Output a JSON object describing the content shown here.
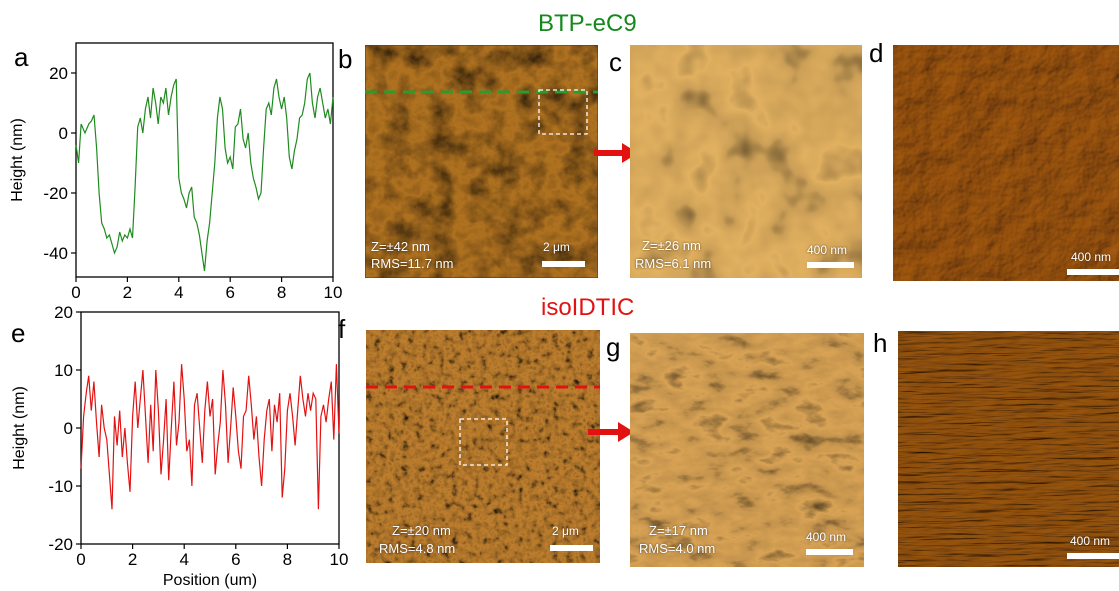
{
  "figure": {
    "titles": {
      "top": "BTP-eC9",
      "bottom": "isoIDTIC"
    },
    "colors": {
      "top": "#15891c",
      "bottom": "#e31212",
      "arrow": "#e31212"
    },
    "letters": {
      "a": "a",
      "b": "b",
      "c": "c",
      "d": "d",
      "e": "e",
      "f": "f",
      "g": "g",
      "h": "h"
    },
    "afm": {
      "b": {
        "z": "Z=±42 nm",
        "rms": "RMS=11.7 nm",
        "scale": "2 μm"
      },
      "c": {
        "z": "Z=±26 nm",
        "rms": "RMS=6.1 nm",
        "scale": "400 nm"
      },
      "d": {
        "scale": "400 nm"
      },
      "f": {
        "z": "Z=±20 nm",
        "rms": "RMS=4.8 nm",
        "scale": "2 μm"
      },
      "g": {
        "z": "Z=±17 nm",
        "rms": "RMS=4.0 nm",
        "scale": "400 nm"
      },
      "h": {
        "scale": "400 nm"
      }
    }
  },
  "chart_data": [
    {
      "type": "line",
      "panel": "a",
      "xlabel": "",
      "ylabel": "Height (nm)",
      "xlim": [
        0,
        10
      ],
      "ylim": [
        -48,
        30
      ],
      "xticks": [
        0,
        2,
        4,
        6,
        8,
        10
      ],
      "yticks": [
        20,
        0,
        -20,
        -40
      ],
      "color": "#1f8b1f",
      "x": [
        0,
        0.1,
        0.2,
        0.35,
        0.5,
        0.6,
        0.7,
        0.8,
        0.9,
        1.0,
        1.1,
        1.2,
        1.3,
        1.4,
        1.5,
        1.6,
        1.7,
        1.8,
        1.9,
        2.0,
        2.1,
        2.2,
        2.3,
        2.4,
        2.5,
        2.6,
        2.7,
        2.8,
        2.9,
        3.0,
        3.1,
        3.2,
        3.3,
        3.4,
        3.5,
        3.6,
        3.7,
        3.8,
        3.9,
        4.0,
        4.1,
        4.2,
        4.3,
        4.4,
        4.5,
        4.6,
        4.7,
        4.8,
        4.9,
        5.0,
        5.1,
        5.2,
        5.3,
        5.4,
        5.5,
        5.6,
        5.7,
        5.8,
        5.9,
        6.0,
        6.1,
        6.2,
        6.3,
        6.4,
        6.5,
        6.6,
        6.7,
        6.8,
        6.9,
        7.0,
        7.1,
        7.2,
        7.3,
        7.4,
        7.5,
        7.6,
        7.7,
        7.8,
        7.9,
        8.0,
        8.1,
        8.2,
        8.3,
        8.4,
        8.5,
        8.6,
        8.7,
        8.8,
        8.9,
        9.0,
        9.1,
        9.2,
        9.3,
        9.4,
        9.5,
        9.6,
        9.7,
        9.8,
        9.9,
        10.0
      ],
      "y": [
        -4,
        -10,
        3,
        0,
        3,
        4,
        6,
        -5,
        -20,
        -30,
        -32,
        -35,
        -34,
        -37,
        -40,
        -38,
        -33,
        -36,
        -34,
        -35,
        -32,
        -35,
        -18,
        2,
        5,
        0,
        8,
        12,
        5,
        15,
        10,
        3,
        12,
        10,
        15,
        6,
        12,
        16,
        18,
        -15,
        -20,
        -22,
        -25,
        -20,
        -18,
        -28,
        -30,
        -34,
        -40,
        -46,
        -36,
        -30,
        -20,
        -10,
        5,
        12,
        8,
        -5,
        -10,
        -8,
        -12,
        2,
        3,
        8,
        -2,
        -5,
        0,
        -10,
        -15,
        -18,
        -22,
        -20,
        -5,
        8,
        10,
        6,
        15,
        18,
        12,
        8,
        12,
        5,
        -8,
        -12,
        -6,
        -2,
        5,
        6,
        10,
        18,
        20,
        10,
        5,
        12,
        15,
        10,
        5,
        8,
        3,
        12
      ]
    },
    {
      "type": "line",
      "panel": "e",
      "xlabel": "Position (um)",
      "ylabel": "Height (nm)",
      "xlim": [
        0,
        10
      ],
      "ylim": [
        -20,
        20
      ],
      "xticks": [
        0,
        2,
        4,
        6,
        8,
        10
      ],
      "yticks": [
        20,
        10,
        0,
        -10,
        -20
      ],
      "color": "#e31212",
      "x": [
        0,
        0.1,
        0.2,
        0.3,
        0.4,
        0.5,
        0.6,
        0.7,
        0.8,
        0.9,
        1.0,
        1.1,
        1.2,
        1.3,
        1.4,
        1.5,
        1.6,
        1.7,
        1.8,
        1.9,
        2.0,
        2.1,
        2.2,
        2.3,
        2.4,
        2.5,
        2.6,
        2.7,
        2.8,
        2.9,
        3.0,
        3.1,
        3.2,
        3.3,
        3.4,
        3.5,
        3.6,
        3.7,
        3.8,
        3.9,
        4.0,
        4.1,
        4.2,
        4.3,
        4.4,
        4.5,
        4.6,
        4.7,
        4.8,
        4.9,
        5.0,
        5.1,
        5.2,
        5.3,
        5.4,
        5.5,
        5.6,
        5.7,
        5.8,
        5.9,
        6.0,
        6.1,
        6.2,
        6.3,
        6.4,
        6.5,
        6.6,
        6.7,
        6.8,
        6.9,
        7.0,
        7.1,
        7.2,
        7.3,
        7.4,
        7.5,
        7.6,
        7.7,
        7.8,
        7.9,
        8.0,
        8.1,
        8.2,
        8.3,
        8.4,
        8.5,
        8.6,
        8.7,
        8.8,
        8.9,
        9.0,
        9.1,
        9.2,
        9.3,
        9.4,
        9.5,
        9.6,
        9.7,
        9.8,
        9.9,
        10.0
      ],
      "y": [
        -7,
        2,
        6,
        9,
        3,
        8,
        1,
        -5,
        4,
        0,
        -2,
        -8,
        -14,
        2,
        -3,
        3,
        -5,
        0,
        -6,
        -11,
        2,
        8,
        0,
        5,
        10,
        2,
        -6,
        4,
        -4,
        10,
        3,
        -8,
        -2,
        5,
        -9,
        0,
        8,
        -3,
        1,
        11,
        5,
        -4,
        -2,
        -10,
        4,
        6,
        0,
        -6,
        3,
        8,
        2,
        5,
        -8,
        -3,
        1,
        10,
        4,
        -6,
        0,
        7,
        2,
        -4,
        -7,
        2,
        3,
        9,
        4,
        -2,
        2,
        -5,
        -10,
        -2,
        3,
        5,
        -4,
        4,
        1,
        6,
        -12,
        -7,
        3,
        6,
        2,
        -3,
        3,
        9,
        5,
        2,
        6,
        3,
        6,
        5,
        -14,
        2,
        4,
        1,
        5,
        8,
        -2,
        11,
        -1
      ]
    }
  ]
}
